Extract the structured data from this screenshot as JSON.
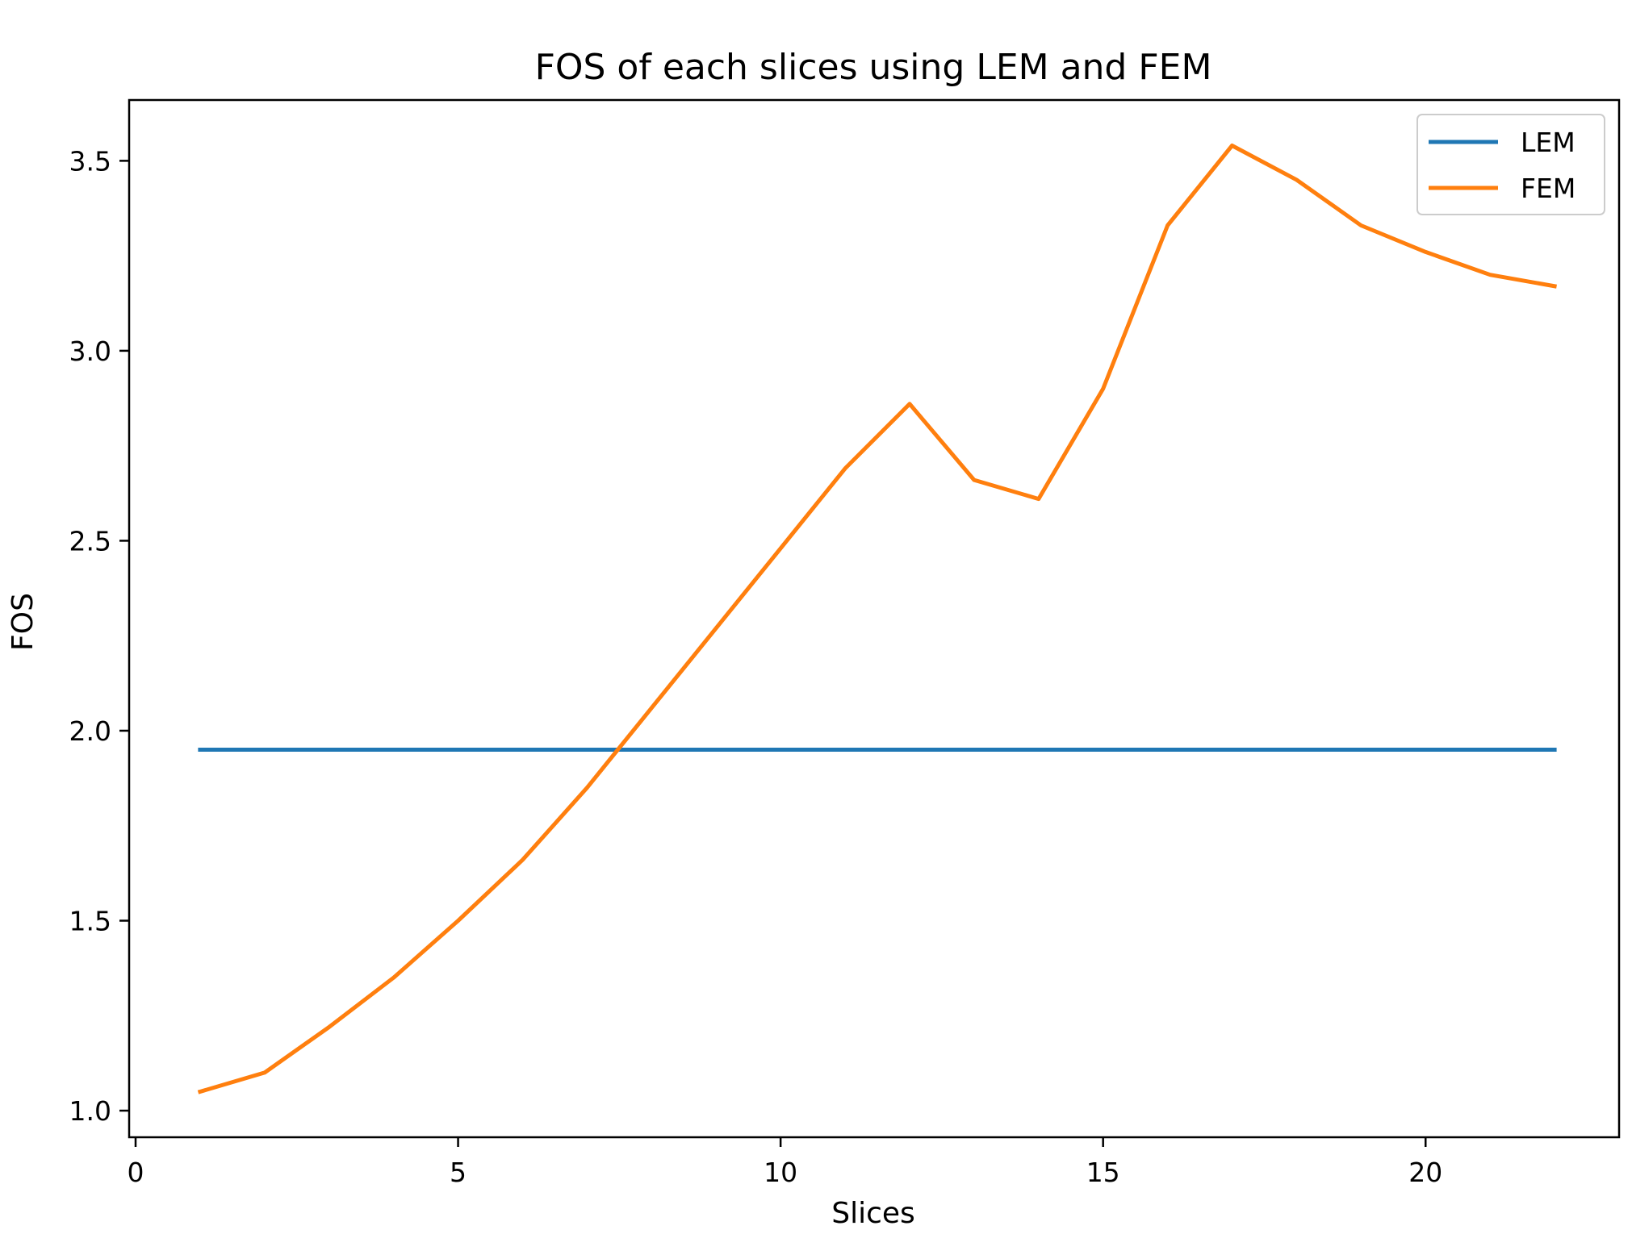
{
  "chart_data": {
    "type": "line",
    "title": "FOS of each slices using LEM and FEM",
    "xlabel": "Slices",
    "ylabel": "FOS",
    "xlim": [
      -0.1,
      23
    ],
    "ylim": [
      0.93,
      3.66
    ],
    "xticks": [
      0,
      5,
      10,
      15,
      20
    ],
    "xtick_labels": [
      "0",
      "5",
      "10",
      "15",
      "20"
    ],
    "yticks": [
      1.0,
      1.5,
      2.0,
      2.5,
      3.0,
      3.5
    ],
    "ytick_labels": [
      "1.0",
      "1.5",
      "2.0",
      "2.5",
      "3.0",
      "3.5"
    ],
    "grid": false,
    "legend_position": "top-right",
    "x": [
      1,
      2,
      3,
      4,
      5,
      6,
      7,
      8,
      9,
      10,
      11,
      12,
      13,
      14,
      15,
      16,
      17,
      18,
      19,
      20,
      21,
      22
    ],
    "series": [
      {
        "name": "LEM",
        "color": "#1f77b4",
        "values": [
          1.95,
          1.95,
          1.95,
          1.95,
          1.95,
          1.95,
          1.95,
          1.95,
          1.95,
          1.95,
          1.95,
          1.95,
          1.95,
          1.95,
          1.95,
          1.95,
          1.95,
          1.95,
          1.95,
          1.95,
          1.95,
          1.95
        ]
      },
      {
        "name": "FEM",
        "color": "#ff7f0e",
        "values": [
          1.05,
          1.1,
          1.22,
          1.35,
          1.5,
          1.66,
          1.85,
          2.06,
          2.27,
          2.48,
          2.69,
          2.86,
          2.66,
          2.61,
          2.9,
          3.33,
          3.54,
          3.45,
          3.33,
          3.26,
          3.2,
          3.17
        ]
      }
    ]
  }
}
